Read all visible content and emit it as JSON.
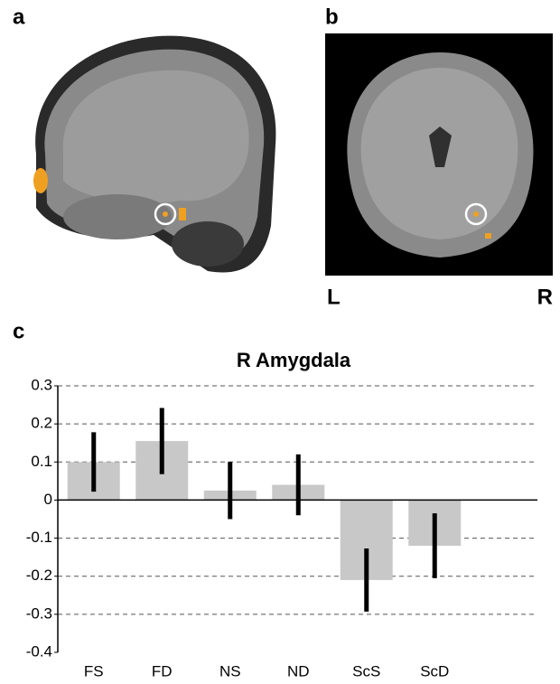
{
  "panel_labels": [
    "a",
    "b",
    "c"
  ],
  "orientation": {
    "left": "L",
    "right": "R"
  },
  "chart_data": {
    "type": "bar",
    "title": "R Amygdala",
    "categories": [
      "FS",
      "FD",
      "NS",
      "ND",
      "ScS",
      "ScD"
    ],
    "values": [
      0.1,
      0.155,
      0.025,
      0.04,
      -0.21,
      -0.12
    ],
    "errors": [
      0.078,
      0.087,
      0.075,
      0.08,
      0.083,
      0.085
    ],
    "color": "#c8c8c8",
    "error_color": "#000000",
    "ylim": [
      -0.4,
      0.3
    ],
    "yticks": [
      -0.4,
      -0.3,
      -0.2,
      -0.1,
      0,
      0.1,
      0.2,
      0.3
    ],
    "grid": true
  }
}
